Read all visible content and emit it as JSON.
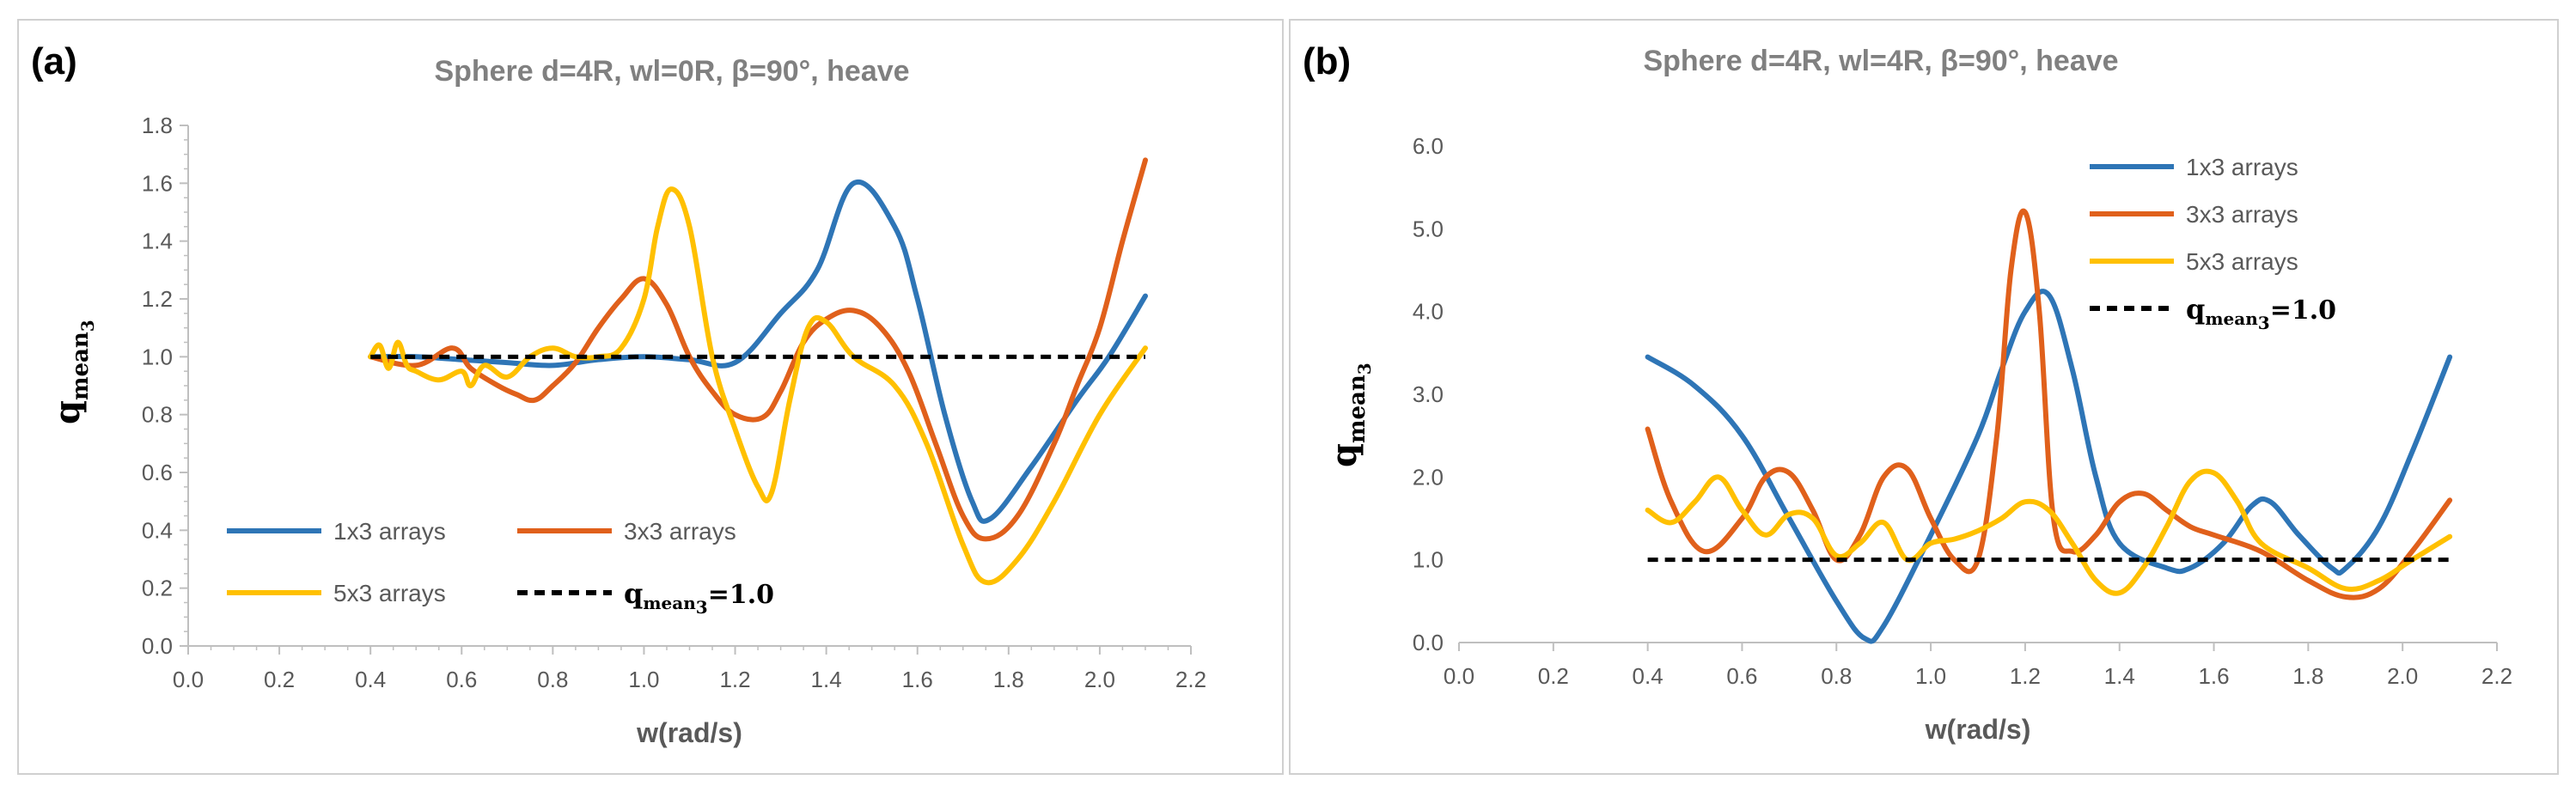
{
  "chart_data": [
    {
      "type": "line",
      "panel_label": "(a)",
      "title": "Sphere d=4R, wl=0R, β=90°, heave",
      "xlabel": "w(rad/s)",
      "ylabel_main": "q",
      "ylabel_sub": "mean",
      "ylabel_subsub": "3",
      "xlim": [
        0.0,
        2.2
      ],
      "ylim": [
        0.0,
        1.8
      ],
      "xticks": [
        "0.0",
        "0.2",
        "0.4",
        "0.6",
        "0.8",
        "1.0",
        "1.2",
        "1.4",
        "1.6",
        "1.8",
        "2.0",
        "2.2"
      ],
      "yticks": [
        "0.0",
        "0.2",
        "0.4",
        "0.6",
        "0.8",
        "1.0",
        "1.2",
        "1.4",
        "1.6",
        "1.8"
      ],
      "legend_position": "bottom-left",
      "reference": {
        "label_eq": "=1.0",
        "value": 1.0,
        "x_range": [
          0.4,
          2.1
        ]
      },
      "series": [
        {
          "name": "1x3 arrays",
          "color": "#2E75B6",
          "x": [
            0.4,
            0.5,
            0.6,
            0.7,
            0.8,
            0.9,
            1.0,
            1.1,
            1.2,
            1.3,
            1.38,
            1.46,
            1.55,
            1.6,
            1.66,
            1.72,
            1.76,
            1.85,
            1.95,
            2.02,
            2.1
          ],
          "y": [
            1.0,
            1.0,
            0.99,
            0.98,
            0.97,
            0.99,
            1.0,
            0.99,
            0.98,
            1.15,
            1.3,
            1.6,
            1.45,
            1.2,
            0.8,
            0.5,
            0.44,
            0.62,
            0.85,
            1.0,
            1.21
          ]
        },
        {
          "name": "3x3 arrays",
          "color": "#E0601B",
          "x": [
            0.4,
            0.5,
            0.58,
            0.62,
            0.68,
            0.72,
            0.76,
            0.8,
            0.85,
            0.9,
            0.95,
            1.0,
            1.05,
            1.1,
            1.15,
            1.2,
            1.26,
            1.3,
            1.35,
            1.4,
            1.46,
            1.52,
            1.58,
            1.64,
            1.7,
            1.75,
            1.82,
            1.9,
            1.95,
            2.0,
            2.05,
            2.1
          ],
          "y": [
            1.0,
            0.97,
            1.03,
            0.96,
            0.9,
            0.87,
            0.85,
            0.9,
            0.98,
            1.1,
            1.2,
            1.27,
            1.18,
            1.0,
            0.88,
            0.8,
            0.79,
            0.88,
            1.05,
            1.13,
            1.16,
            1.1,
            0.95,
            0.7,
            0.45,
            0.37,
            0.45,
            0.7,
            0.9,
            1.1,
            1.4,
            1.68
          ]
        },
        {
          "name": "5x3 arrays",
          "color": "#FFC000",
          "x": [
            0.4,
            0.42,
            0.44,
            0.46,
            0.48,
            0.5,
            0.55,
            0.6,
            0.62,
            0.65,
            0.7,
            0.75,
            0.8,
            0.85,
            0.9,
            0.95,
            1.0,
            1.03,
            1.06,
            1.1,
            1.15,
            1.2,
            1.25,
            1.28,
            1.32,
            1.36,
            1.4,
            1.46,
            1.55,
            1.62,
            1.7,
            1.75,
            1.82,
            1.9,
            2.0,
            2.1
          ],
          "y": [
            1.0,
            1.04,
            0.96,
            1.05,
            0.97,
            0.95,
            0.92,
            0.95,
            0.9,
            0.97,
            0.93,
            1.0,
            1.03,
            1.0,
            1.0,
            1.03,
            1.2,
            1.45,
            1.58,
            1.45,
            1.0,
            0.75,
            0.55,
            0.53,
            0.85,
            1.1,
            1.12,
            1.0,
            0.9,
            0.7,
            0.35,
            0.22,
            0.3,
            0.5,
            0.8,
            1.03
          ]
        }
      ]
    },
    {
      "type": "line",
      "panel_label": "(b)",
      "title": "Sphere d=4R, wl=4R, β=90°, heave",
      "xlabel": "w(rad/s)",
      "ylabel_main": "q",
      "ylabel_sub": "mean",
      "ylabel_subsub": "3",
      "xlim": [
        0.0,
        2.2
      ],
      "ylim": [
        0.0,
        6.0
      ],
      "xticks": [
        "0.0",
        "0.2",
        "0.4",
        "0.6",
        "0.8",
        "1.0",
        "1.2",
        "1.4",
        "1.6",
        "1.8",
        "2.0",
        "2.2"
      ],
      "yticks": [
        "0.0",
        "1.0",
        "2.0",
        "3.0",
        "4.0",
        "5.0",
        "6.0"
      ],
      "legend_position": "top-right",
      "reference": {
        "label_eq": "=1.0",
        "value": 1.0,
        "x_range": [
          0.4,
          2.1
        ]
      },
      "series": [
        {
          "name": "1x3 arrays",
          "color": "#2E75B6",
          "x": [
            0.4,
            0.5,
            0.6,
            0.7,
            0.8,
            0.86,
            0.9,
            1.0,
            1.1,
            1.15,
            1.2,
            1.25,
            1.3,
            1.35,
            1.4,
            1.5,
            1.55,
            1.62,
            1.68,
            1.72,
            1.78,
            1.85,
            1.88,
            1.95,
            2.02,
            2.1
          ],
          "y": [
            3.45,
            3.1,
            2.5,
            1.5,
            0.5,
            0.05,
            0.2,
            1.3,
            2.5,
            3.3,
            4.0,
            4.2,
            3.3,
            2.0,
            1.2,
            0.9,
            0.9,
            1.2,
            1.65,
            1.7,
            1.3,
            0.9,
            0.9,
            1.4,
            2.3,
            3.45
          ]
        },
        {
          "name": "3x3 arrays",
          "color": "#E0601B",
          "x": [
            0.4,
            0.45,
            0.52,
            0.6,
            0.65,
            0.7,
            0.75,
            0.8,
            0.85,
            0.9,
            0.95,
            1.0,
            1.05,
            1.1,
            1.14,
            1.17,
            1.2,
            1.23,
            1.26,
            1.3,
            1.35,
            1.4,
            1.45,
            1.5,
            1.55,
            1.6,
            1.7,
            1.8,
            1.88,
            1.95,
            2.02,
            2.1
          ],
          "y": [
            2.58,
            1.7,
            1.1,
            1.5,
            2.0,
            2.05,
            1.6,
            1.0,
            1.3,
            2.0,
            2.1,
            1.5,
            1.0,
            1.0,
            2.5,
            4.5,
            5.2,
            4.0,
            1.5,
            1.1,
            1.3,
            1.7,
            1.8,
            1.6,
            1.4,
            1.3,
            1.1,
            0.75,
            0.55,
            0.65,
            1.1,
            1.72
          ]
        },
        {
          "name": "5x3 arrays",
          "color": "#FFC000",
          "x": [
            0.4,
            0.45,
            0.5,
            0.55,
            0.6,
            0.65,
            0.7,
            0.75,
            0.8,
            0.85,
            0.9,
            0.95,
            1.0,
            1.05,
            1.1,
            1.15,
            1.2,
            1.25,
            1.3,
            1.35,
            1.4,
            1.45,
            1.5,
            1.55,
            1.6,
            1.65,
            1.7,
            1.8,
            1.88,
            1.95,
            2.02,
            2.1
          ],
          "y": [
            1.6,
            1.45,
            1.7,
            2.0,
            1.6,
            1.3,
            1.55,
            1.5,
            1.05,
            1.2,
            1.45,
            1.0,
            1.2,
            1.25,
            1.35,
            1.5,
            1.7,
            1.6,
            1.2,
            0.75,
            0.6,
            0.9,
            1.4,
            1.95,
            2.05,
            1.7,
            1.2,
            0.9,
            0.65,
            0.75,
            1.0,
            1.28
          ]
        }
      ]
    }
  ]
}
